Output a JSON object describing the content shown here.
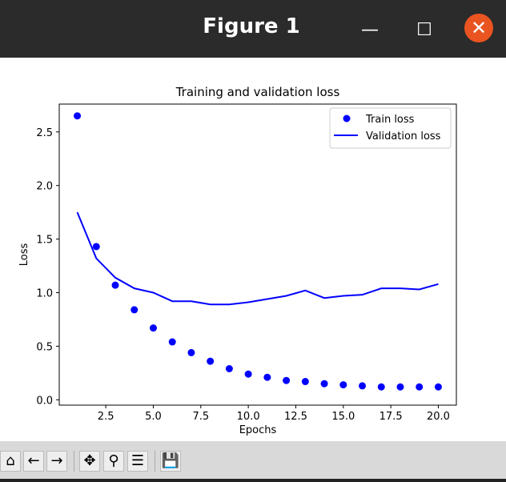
{
  "window": {
    "title": "Figure 1",
    "minimize": "—",
    "maximize": "☐",
    "close": "✕"
  },
  "toolbar": {
    "home": "⌂",
    "back": "←",
    "forward": "→",
    "pan": "✥",
    "zoom": "⚲",
    "configure": "☰",
    "save": "💾"
  },
  "chart_data": {
    "type": "scatter+line",
    "title": "Training and validation loss",
    "xlabel": "Epochs",
    "ylabel": "Loss",
    "xlim": [
      0.05,
      20.95
    ],
    "ylim": [
      -0.05,
      2.76
    ],
    "xticks": [
      2.5,
      5.0,
      7.5,
      10.0,
      12.5,
      15.0,
      17.5,
      20.0
    ],
    "xtick_labels": [
      "2.5",
      "5.0",
      "7.5",
      "10.0",
      "12.5",
      "15.0",
      "17.5",
      "20.0"
    ],
    "yticks": [
      0.0,
      0.5,
      1.0,
      1.5,
      2.0,
      2.5
    ],
    "ytick_labels": [
      "0.0",
      "0.5",
      "1.0",
      "1.5",
      "2.0",
      "2.5"
    ],
    "x": [
      1,
      2,
      3,
      4,
      5,
      6,
      7,
      8,
      9,
      10,
      11,
      12,
      13,
      14,
      15,
      16,
      17,
      18,
      19,
      20
    ],
    "series": [
      {
        "name": "Train loss",
        "style": "dots",
        "color": "#0000ff",
        "values": [
          2.65,
          1.43,
          1.07,
          0.84,
          0.67,
          0.54,
          0.44,
          0.36,
          0.29,
          0.24,
          0.21,
          0.18,
          0.17,
          0.15,
          0.14,
          0.13,
          0.12,
          0.12,
          0.12,
          0.12
        ]
      },
      {
        "name": "Validation loss",
        "style": "line",
        "color": "#0000ff",
        "values": [
          1.75,
          1.32,
          1.14,
          1.04,
          1.0,
          0.92,
          0.92,
          0.89,
          0.89,
          0.91,
          0.94,
          0.97,
          1.02,
          0.95,
          0.97,
          0.98,
          1.04,
          1.04,
          1.03,
          1.08
        ]
      }
    ],
    "legend": "top-right",
    "grid": false
  }
}
